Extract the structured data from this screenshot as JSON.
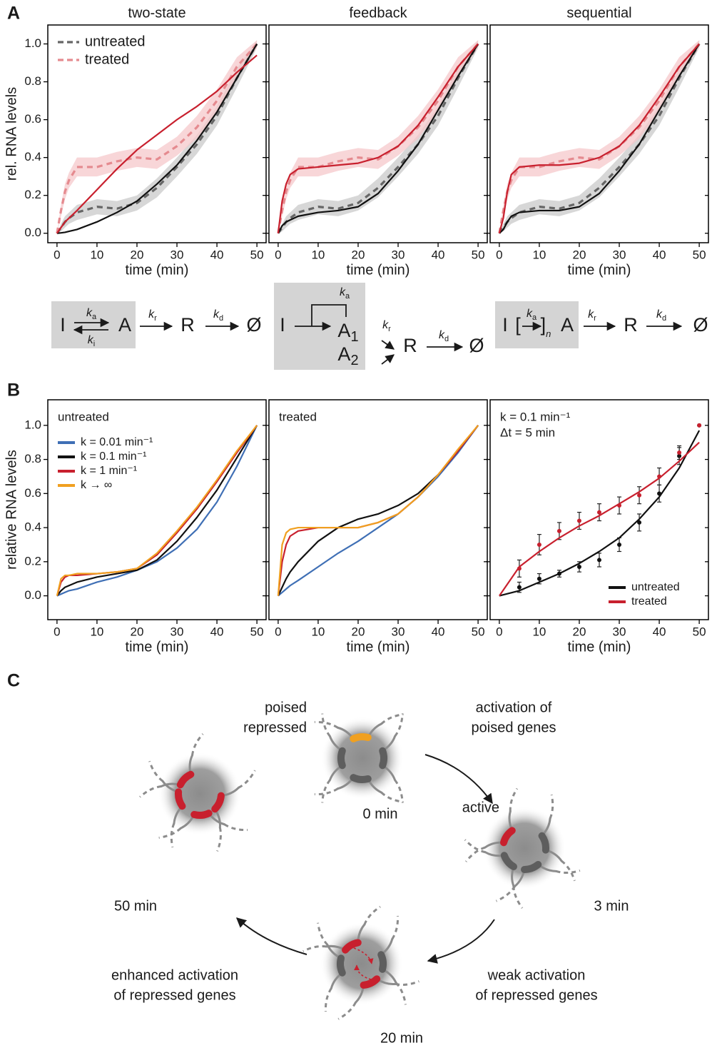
{
  "labels": [
    "A",
    "B",
    "C"
  ],
  "chart_data": [
    {
      "type": "line",
      "title": "two-state",
      "xlabel": "time (min)",
      "ylabel": "rel. RNA levels",
      "x": [
        0,
        1,
        2,
        3,
        5,
        10,
        15,
        20,
        25,
        30,
        35,
        40,
        45,
        50
      ],
      "xlim": [
        -2.3,
        52.3
      ],
      "ylim": [
        -0.05,
        1.1
      ],
      "xticks": [
        0,
        10,
        20,
        30,
        40,
        50
      ],
      "yticks": [
        {
          "value": 0,
          "label": "0.0"
        },
        0.2,
        0.4,
        0.6,
        0.8,
        {
          "value": 1,
          "label": "1.0"
        }
      ],
      "legend": "upper left",
      "series": [
        {
          "name": "untreated",
          "color": "#666666",
          "dash": true,
          "error_color": "#c9c9c9",
          "values": [
            0,
            0.03,
            0.06,
            0.08,
            0.11,
            0.14,
            0.13,
            0.16,
            0.24,
            0.35,
            0.47,
            0.62,
            0.82,
            1.0
          ],
          "errors": [
            0,
            0.02,
            0.03,
            0.03,
            0.04,
            0.04,
            0.04,
            0.04,
            0.05,
            0.05,
            0.05,
            0.05,
            0.05,
            0.02
          ]
        },
        {
          "name": "treated",
          "color": "#e58a8f",
          "dash": true,
          "error_color": "#f6c8cb",
          "values": [
            0,
            0.12,
            0.22,
            0.28,
            0.35,
            0.35,
            0.38,
            0.4,
            0.39,
            0.46,
            0.56,
            0.7,
            0.88,
            1.0
          ],
          "errors": [
            0,
            0.03,
            0.04,
            0.04,
            0.05,
            0.05,
            0.05,
            0.05,
            0.05,
            0.05,
            0.06,
            0.06,
            0.05,
            0.02
          ]
        },
        {
          "color": "#111111",
          "values": [
            0,
            0.002,
            0.005,
            0.01,
            0.02,
            0.06,
            0.11,
            0.17,
            0.26,
            0.36,
            0.49,
            0.64,
            0.82,
            1.0
          ]
        },
        {
          "color": "#c8202e",
          "values": [
            0,
            0.03,
            0.06,
            0.08,
            0.12,
            0.23,
            0.34,
            0.44,
            0.52,
            0.6,
            0.67,
            0.75,
            0.85,
            0.94
          ]
        }
      ]
    },
    {
      "type": "line",
      "title": "feedback",
      "xlabel": "time (min)",
      "ytick_labels": false,
      "x": [
        0,
        1,
        2,
        3,
        5,
        10,
        15,
        20,
        25,
        30,
        35,
        40,
        45,
        50
      ],
      "xlim": [
        -2.3,
        52.3
      ],
      "ylim": [
        -0.05,
        1.1
      ],
      "xticks": [
        0,
        10,
        20,
        30,
        40,
        50
      ],
      "yticks": [
        0,
        0.2,
        0.4,
        0.6,
        0.8,
        1
      ],
      "series": [
        {
          "color": "#666666",
          "dash": true,
          "error_color": "#c9c9c9",
          "values": [
            0,
            0.03,
            0.06,
            0.08,
            0.11,
            0.14,
            0.13,
            0.16,
            0.24,
            0.35,
            0.47,
            0.62,
            0.82,
            1.0
          ],
          "errors": [
            0,
            0.02,
            0.03,
            0.03,
            0.04,
            0.04,
            0.04,
            0.04,
            0.05,
            0.05,
            0.05,
            0.05,
            0.05,
            0.02
          ]
        },
        {
          "color": "#e58a8f",
          "dash": true,
          "error_color": "#f6c8cb",
          "values": [
            0,
            0.12,
            0.22,
            0.28,
            0.35,
            0.35,
            0.38,
            0.4,
            0.39,
            0.46,
            0.56,
            0.7,
            0.88,
            1.0
          ],
          "errors": [
            0,
            0.03,
            0.04,
            0.04,
            0.05,
            0.05,
            0.05,
            0.05,
            0.05,
            0.05,
            0.06,
            0.06,
            0.05,
            0.02
          ]
        },
        {
          "color": "#111111",
          "values": [
            0,
            0.04,
            0.06,
            0.07,
            0.09,
            0.11,
            0.12,
            0.14,
            0.21,
            0.33,
            0.47,
            0.65,
            0.83,
            1.0
          ]
        },
        {
          "color": "#c8202e",
          "values": [
            0,
            0.17,
            0.26,
            0.31,
            0.34,
            0.35,
            0.36,
            0.37,
            0.4,
            0.46,
            0.57,
            0.72,
            0.88,
            1.0
          ]
        }
      ]
    },
    {
      "type": "line",
      "title": "sequential",
      "xlabel": "time (min)",
      "ytick_labels": false,
      "x": [
        0,
        1,
        2,
        3,
        5,
        10,
        15,
        20,
        25,
        30,
        35,
        40,
        45,
        50
      ],
      "xlim": [
        -2.3,
        52.3
      ],
      "ylim": [
        -0.05,
        1.1
      ],
      "xticks": [
        0,
        10,
        20,
        30,
        40,
        50
      ],
      "yticks": [
        0,
        0.2,
        0.4,
        0.6,
        0.8,
        1
      ],
      "series": [
        {
          "color": "#666666",
          "dash": true,
          "error_color": "#c9c9c9",
          "values": [
            0,
            0.03,
            0.06,
            0.08,
            0.11,
            0.14,
            0.13,
            0.16,
            0.24,
            0.35,
            0.47,
            0.62,
            0.82,
            1.0
          ],
          "errors": [
            0,
            0.02,
            0.03,
            0.03,
            0.04,
            0.04,
            0.04,
            0.04,
            0.05,
            0.05,
            0.05,
            0.05,
            0.05,
            0.02
          ]
        },
        {
          "color": "#e58a8f",
          "dash": true,
          "error_color": "#f6c8cb",
          "values": [
            0,
            0.12,
            0.22,
            0.28,
            0.35,
            0.35,
            0.38,
            0.4,
            0.39,
            0.46,
            0.56,
            0.7,
            0.88,
            1.0
          ],
          "errors": [
            0,
            0.03,
            0.04,
            0.04,
            0.05,
            0.05,
            0.05,
            0.05,
            0.05,
            0.05,
            0.06,
            0.06,
            0.05,
            0.02
          ]
        },
        {
          "color": "#111111",
          "values": [
            0,
            0.02,
            0.06,
            0.09,
            0.11,
            0.12,
            0.12,
            0.14,
            0.21,
            0.33,
            0.47,
            0.65,
            0.83,
            1.0
          ]
        },
        {
          "color": "#c8202e",
          "values": [
            0,
            0.08,
            0.22,
            0.31,
            0.35,
            0.36,
            0.36,
            0.37,
            0.4,
            0.46,
            0.57,
            0.72,
            0.88,
            1.0
          ]
        }
      ]
    },
    {
      "type": "line",
      "annotation": "untreated",
      "xlabel": "time (min)",
      "ylabel": "relative RNA levels",
      "x": [
        0,
        1,
        2,
        3,
        5,
        10,
        15,
        20,
        25,
        30,
        35,
        40,
        45,
        50
      ],
      "xlim": [
        -2.3,
        52.3
      ],
      "ylim": [
        -0.14,
        1.15
      ],
      "xticks": [
        0,
        10,
        20,
        30,
        40,
        50
      ],
      "yticks": [
        {
          "value": 0,
          "label": "0.0"
        },
        0.2,
        0.4,
        0.6,
        0.8,
        {
          "value": 1,
          "label": "1.0"
        }
      ],
      "legend": "upper left",
      "series": [
        {
          "name": "k = 0.01 min⁻¹",
          "color": "#3f6fb5",
          "values": [
            0,
            0.01,
            0.02,
            0.03,
            0.04,
            0.08,
            0.11,
            0.15,
            0.2,
            0.28,
            0.39,
            0.55,
            0.76,
            1.0
          ]
        },
        {
          "name": "k = 0.1 min⁻¹",
          "color": "#111111",
          "values": [
            0,
            0.03,
            0.05,
            0.06,
            0.08,
            0.11,
            0.13,
            0.15,
            0.21,
            0.32,
            0.46,
            0.62,
            0.81,
            1.0
          ]
        },
        {
          "name": "k = 1 min⁻¹",
          "color": "#c8202e",
          "values": [
            0,
            0.08,
            0.11,
            0.12,
            0.12,
            0.13,
            0.14,
            0.16,
            0.24,
            0.37,
            0.51,
            0.67,
            0.84,
            1.0
          ]
        },
        {
          "name": "k → ∞",
          "color": "#f0a020",
          "values": [
            0,
            0.1,
            0.12,
            0.12,
            0.13,
            0.13,
            0.14,
            0.16,
            0.25,
            0.38,
            0.52,
            0.68,
            0.85,
            1.0
          ]
        }
      ]
    },
    {
      "type": "line",
      "annotation": "treated",
      "xlabel": "time (min)",
      "ytick_labels": false,
      "x": [
        0,
        1,
        2,
        3,
        5,
        10,
        15,
        20,
        25,
        30,
        35,
        40,
        45,
        50
      ],
      "xlim": [
        -2.3,
        52.3
      ],
      "ylim": [
        -0.14,
        1.15
      ],
      "xticks": [
        0,
        10,
        20,
        30,
        40,
        50
      ],
      "yticks": [
        0,
        0.2,
        0.4,
        0.6,
        0.8,
        1
      ],
      "series": [
        {
          "color": "#3f6fb5",
          "values": [
            0,
            0.02,
            0.04,
            0.06,
            0.09,
            0.17,
            0.25,
            0.32,
            0.4,
            0.48,
            0.58,
            0.7,
            0.84,
            1.0
          ]
        },
        {
          "color": "#111111",
          "values": [
            0,
            0.05,
            0.1,
            0.14,
            0.2,
            0.32,
            0.4,
            0.45,
            0.48,
            0.53,
            0.6,
            0.71,
            0.85,
            1.0
          ]
        },
        {
          "color": "#c8202e",
          "values": [
            0,
            0.2,
            0.3,
            0.35,
            0.38,
            0.4,
            0.4,
            0.4,
            0.43,
            0.48,
            0.58,
            0.71,
            0.85,
            1.0
          ]
        },
        {
          "color": "#f0a020",
          "values": [
            0,
            0.3,
            0.37,
            0.39,
            0.4,
            0.4,
            0.4,
            0.4,
            0.43,
            0.48,
            0.58,
            0.71,
            0.86,
            1.0
          ]
        }
      ]
    },
    {
      "type": "line",
      "annotation": [
        "k = 0.1 min⁻¹",
        "Δt = 5 min"
      ],
      "xlabel": "time (min)",
      "ytick_labels": false,
      "x": [
        0,
        5,
        10,
        15,
        20,
        25,
        30,
        35,
        40,
        45,
        50
      ],
      "xlim": [
        -2.3,
        52.3
      ],
      "ylim": [
        -0.14,
        1.15
      ],
      "xticks": [
        0,
        10,
        20,
        30,
        40,
        50
      ],
      "yticks": [
        0,
        0.2,
        0.4,
        0.6,
        0.8,
        1
      ],
      "legend": "lower right",
      "series": [
        {
          "color": "#111111",
          "line": false,
          "markers": true,
          "values": [
            null,
            0.05,
            0.1,
            0.13,
            0.17,
            0.21,
            0.3,
            0.43,
            0.6,
            0.82,
            1.0
          ],
          "errors": [
            null,
            0.03,
            0.03,
            0.02,
            0.03,
            0.04,
            0.04,
            0.05,
            0.05,
            0.05,
            null
          ]
        },
        {
          "color": "#c8202e",
          "line": false,
          "markers": true,
          "values": [
            null,
            0.16,
            0.3,
            0.38,
            0.44,
            0.49,
            0.53,
            0.59,
            0.7,
            0.84,
            1.0
          ],
          "errors": [
            null,
            0.05,
            0.06,
            0.05,
            0.05,
            0.05,
            0.05,
            0.05,
            0.05,
            0.04,
            null
          ]
        },
        {
          "name": "untreated",
          "color": "#111111",
          "values": [
            0,
            0.03,
            0.08,
            0.13,
            0.19,
            0.26,
            0.34,
            0.45,
            0.58,
            0.75,
            0.97
          ]
        },
        {
          "name": "treated",
          "color": "#c8202e",
          "values": [
            0,
            0.17,
            0.26,
            0.34,
            0.41,
            0.47,
            0.54,
            0.61,
            0.69,
            0.79,
            0.9
          ]
        }
      ]
    }
  ],
  "schemes": [
    [
      {
        "text": "I"
      },
      {
        "text": "k",
        "sub": "a"
      },
      {
        "text": "k",
        "sub": "i"
      },
      {
        "text": "A"
      },
      {
        "text": "k",
        "sub": "r"
      },
      {
        "text": "R"
      },
      {
        "text": "k",
        "sub": "d"
      },
      {
        "text": "Ø"
      }
    ],
    [
      {
        "text": "I"
      },
      {
        "text": "k",
        "sub": "a"
      },
      {
        "text": "A",
        "sub": "1"
      },
      {
        "text": "A",
        "sub": "2"
      },
      {
        "text": "k",
        "sub": "r"
      },
      {
        "text": "R"
      },
      {
        "text": "k",
        "sub": "d"
      },
      {
        "text": "Ø"
      }
    ],
    [
      {
        "text": "I"
      },
      {
        "text": "["
      },
      {
        "text": "k",
        "sub": "a"
      },
      {
        "text": "]",
        "sub": "n"
      },
      {
        "text": "A"
      },
      {
        "text": "k",
        "sub": "r"
      },
      {
        "text": "R"
      },
      {
        "text": "k",
        "sub": "d"
      },
      {
        "text": "Ø"
      }
    ]
  ],
  "diagram": {
    "labels": {
      "poised": "poised",
      "repressed": "repressed",
      "active": "active"
    },
    "times": [
      "0 min",
      "3 min",
      "20 min",
      "50 min"
    ],
    "transitions": [
      [
        "activation of",
        "poised genes"
      ],
      [
        "weak activation",
        "of repressed genes"
      ],
      [
        "enhanced activation",
        "of repressed genes"
      ]
    ]
  }
}
